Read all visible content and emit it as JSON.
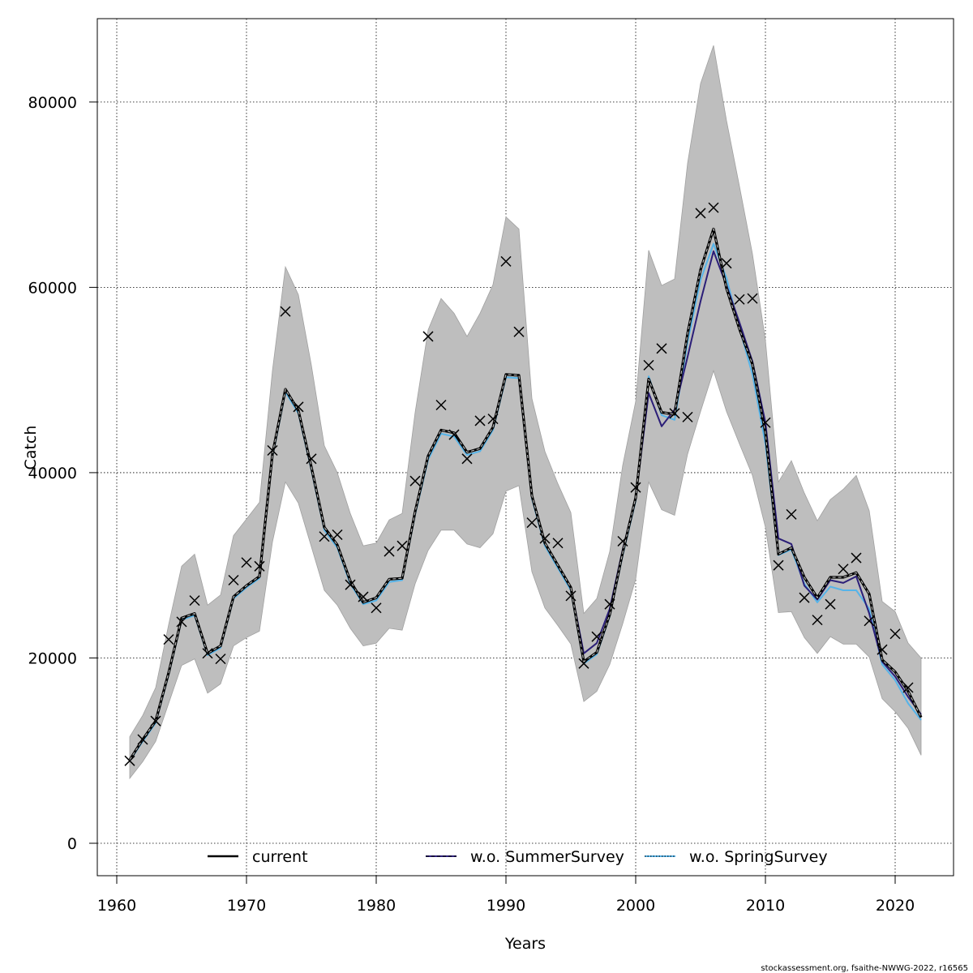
{
  "chart_data": {
    "type": "line",
    "xlabel": "Years",
    "ylabel": "Catch",
    "xlim": [
      1958.5,
      2024.5
    ],
    "ylim": [
      -3500,
      89000
    ],
    "x_ticks": [
      1960,
      1970,
      1980,
      1990,
      2000,
      2010,
      2020
    ],
    "y_ticks": [
      0,
      20000,
      40000,
      60000,
      80000
    ],
    "grid": true,
    "legend_position": "bottom",
    "footer": "stockassessment.org, fsaithe-NWWG-2022, r16565",
    "years": [
      1961,
      1962,
      1963,
      1964,
      1965,
      1966,
      1967,
      1968,
      1969,
      1970,
      1971,
      1972,
      1973,
      1974,
      1975,
      1976,
      1977,
      1978,
      1979,
      1980,
      1981,
      1982,
      1983,
      1984,
      1985,
      1986,
      1987,
      1988,
      1989,
      1990,
      1991,
      1992,
      1993,
      1994,
      1995,
      1996,
      1997,
      1998,
      1999,
      2000,
      2001,
      2002,
      2003,
      2004,
      2005,
      2006,
      2007,
      2008,
      2009,
      2010,
      2011,
      2012,
      2013,
      2014,
      2015,
      2016,
      2017,
      2018,
      2019,
      2020,
      2021,
      2022
    ],
    "band": {
      "upper": [
        11500,
        13800,
        16800,
        23600,
        29900,
        31200,
        25700,
        26800,
        33200,
        35000,
        36800,
        51000,
        62200,
        59200,
        51600,
        42900,
        40000,
        35600,
        32100,
        32400,
        34900,
        35600,
        46500,
        55400,
        58800,
        57200,
        54700,
        57200,
        60300,
        67600,
        66300,
        48000,
        42300,
        38800,
        35700,
        24800,
        26400,
        31500,
        40800,
        47700,
        64000,
        60200,
        60900,
        73400,
        82000,
        86100,
        78000,
        70900,
        63600,
        54300,
        39000,
        41300,
        37800,
        34800,
        37100,
        38200,
        39700,
        35900,
        26100,
        25000,
        21600,
        20000
      ],
      "lower": [
        7000,
        8800,
        11000,
        15100,
        19200,
        19900,
        16200,
        17200,
        21300,
        22200,
        22900,
        32500,
        39000,
        36700,
        32000,
        27300,
        25700,
        23200,
        21300,
        21600,
        23200,
        23000,
        28000,
        31600,
        33800,
        33800,
        32300,
        31900,
        33400,
        38000,
        38600,
        29300,
        25400,
        23500,
        21500,
        15300,
        16400,
        19300,
        23700,
        28500,
        39000,
        36000,
        35400,
        42000,
        46600,
        51000,
        46600,
        43100,
        39700,
        34100,
        24900,
        25000,
        22200,
        20500,
        22300,
        21500,
        21500,
        20100,
        15600,
        14200,
        12400,
        9500
      ]
    },
    "series": [
      {
        "name": "current",
        "color": "#000000",
        "dash": "solid",
        "values": [
          9000,
          11200,
          13200,
          18400,
          24300,
          24800,
          20500,
          21300,
          26600,
          27800,
          28800,
          42000,
          49000,
          46700,
          40600,
          34100,
          32200,
          28300,
          26000,
          26500,
          28500,
          28600,
          35800,
          41800,
          44600,
          44300,
          42200,
          42600,
          44900,
          50600,
          50500,
          37500,
          32400,
          30000,
          27600,
          19600,
          20600,
          24700,
          31400,
          37300,
          50100,
          46500,
          46300,
          55000,
          61900,
          66300,
          59900,
          55500,
          51700,
          44300,
          31200,
          31900,
          28700,
          26500,
          28700,
          28700,
          29200,
          26900,
          19800,
          18500,
          16400,
          13600
        ]
      },
      {
        "name": "w.o. SummerSurvey",
        "color": "#2b1e78",
        "dash": "dashed",
        "values": [
          9000,
          11200,
          13200,
          18400,
          24300,
          24800,
          20500,
          21300,
          26600,
          27800,
          28800,
          42000,
          49000,
          46700,
          40600,
          34100,
          32200,
          28300,
          26000,
          26500,
          28500,
          28600,
          35800,
          41800,
          44600,
          44300,
          42200,
          42600,
          44900,
          50600,
          50500,
          37500,
          32400,
          30000,
          27600,
          20500,
          21600,
          25300,
          31700,
          37300,
          48600,
          45000,
          46800,
          52500,
          58500,
          63900,
          60200,
          56200,
          52000,
          45400,
          32900,
          32300,
          27800,
          26300,
          28400,
          28100,
          28800,
          24800,
          19600,
          18000,
          15800,
          13900
        ]
      },
      {
        "name": "w.o. SpringSurvey",
        "color": "#56b4e9",
        "dash": "dotted",
        "values": [
          8900,
          11000,
          13000,
          18200,
          24100,
          24600,
          20300,
          21100,
          26400,
          27600,
          28600,
          41700,
          48700,
          46400,
          40300,
          33800,
          31900,
          28000,
          25800,
          26200,
          28200,
          28400,
          35500,
          41400,
          44200,
          43900,
          41900,
          42300,
          44600,
          50300,
          50200,
          37200,
          32100,
          29700,
          27300,
          19400,
          20400,
          24500,
          31100,
          37000,
          50400,
          46200,
          45700,
          54100,
          60800,
          64700,
          61000,
          55600,
          50600,
          43100,
          31100,
          31700,
          28000,
          26000,
          27700,
          27300,
          27300,
          25300,
          19300,
          17600,
          15100,
          13300
        ]
      }
    ],
    "observations": {
      "marker": "x",
      "values": [
        8900,
        11200,
        13200,
        22000,
        23900,
        26200,
        20500,
        19900,
        28400,
        30300,
        29900,
        42400,
        57400,
        47100,
        41500,
        33100,
        33300,
        27900,
        26600,
        25400,
        31500,
        32100,
        39100,
        54700,
        47300,
        44100,
        41500,
        45600,
        45800,
        62800,
        55200,
        34600,
        32900,
        32400,
        26700,
        19400,
        22300,
        25800,
        32600,
        38400,
        51600,
        53400,
        46400,
        46000,
        68000,
        68600,
        62600,
        58700,
        58800,
        45400,
        30000,
        35500,
        26500,
        24100,
        25800,
        29600,
        30800,
        24000,
        20900,
        22600,
        16800
      ]
    }
  }
}
